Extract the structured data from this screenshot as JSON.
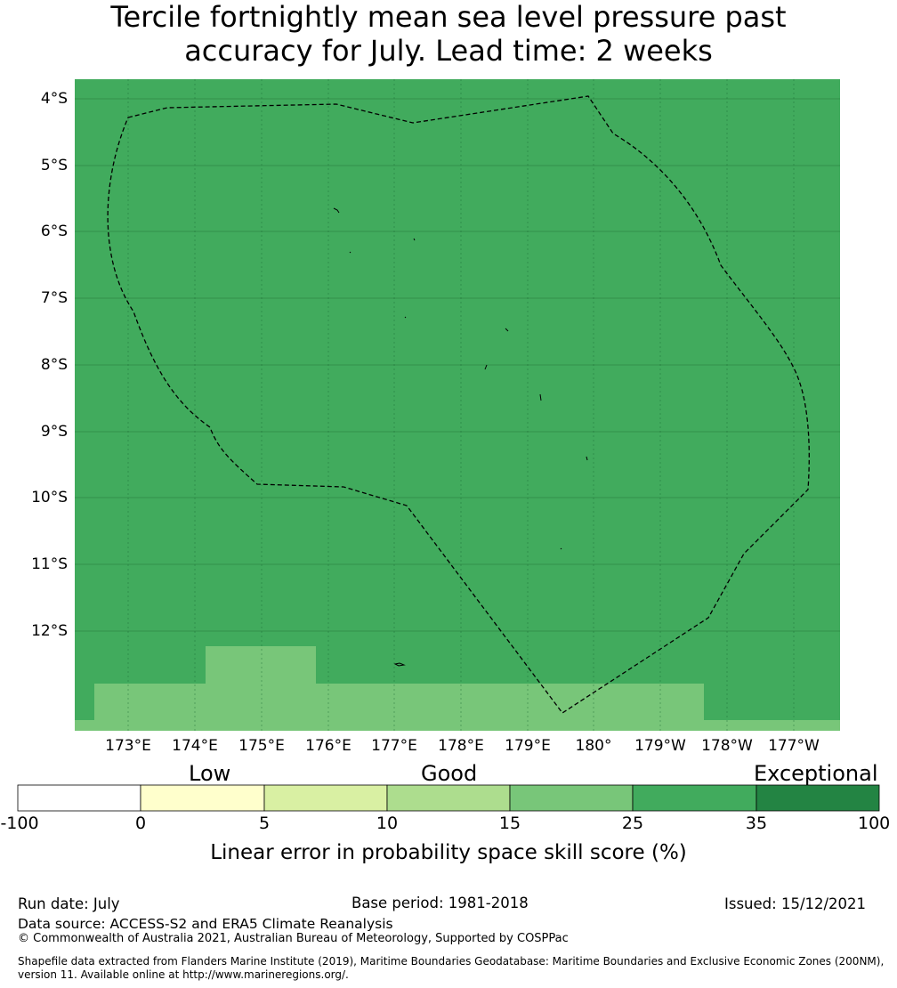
{
  "title": {
    "line1": "Tercile fortnightly mean sea level pressure past",
    "line2": "accuracy for July. Lead time: 2 weeks"
  },
  "map": {
    "latitude_labels": [
      "4°S",
      "5°S",
      "6°S",
      "7°S",
      "8°S",
      "9°S",
      "10°S",
      "11°S",
      "12°S"
    ],
    "longitude_labels": [
      "173°E",
      "174°E",
      "175°E",
      "176°E",
      "177°E",
      "178°E",
      "179°E",
      "180°",
      "179°W",
      "178°W",
      "177°W"
    ],
    "base_fill_color": "#41ab5d",
    "lower_fill_color": "#78c679",
    "grid": true,
    "boundary_style": "dashed",
    "legend_placement": "below"
  },
  "colorbar": {
    "categories": [
      "Low",
      "Good",
      "Exceptional"
    ],
    "ticks": [
      "-100",
      "0",
      "5",
      "10",
      "15",
      "25",
      "35",
      "100"
    ],
    "colors": [
      "#ffffff",
      "#ffffcc",
      "#d9f0a3",
      "#addd8e",
      "#78c679",
      "#41ab5d",
      "#238443"
    ],
    "label": "Linear error in probability space skill score (%)"
  },
  "footer": {
    "run_date": "Run date: July",
    "base_period": "Base period: 1981-2018",
    "issued": "Issued: 15/12/2021",
    "data_source": "Data source: ACCESS-S2 and ERA5 Climate Reanalysis",
    "copyright": "© Commonwealth of Australia 2021, Australian Bureau of Meteorology, Supported by COSPPac",
    "shapefile_line1": "Shapefile data extracted from Flanders Marine Institute (2019), Maritime Boundaries Geodatabase: Maritime Boundaries and Exclusive Economic Zones (200NM),",
    "shapefile_line2": "version 11. Available online at http://www.marineregions.org/."
  }
}
